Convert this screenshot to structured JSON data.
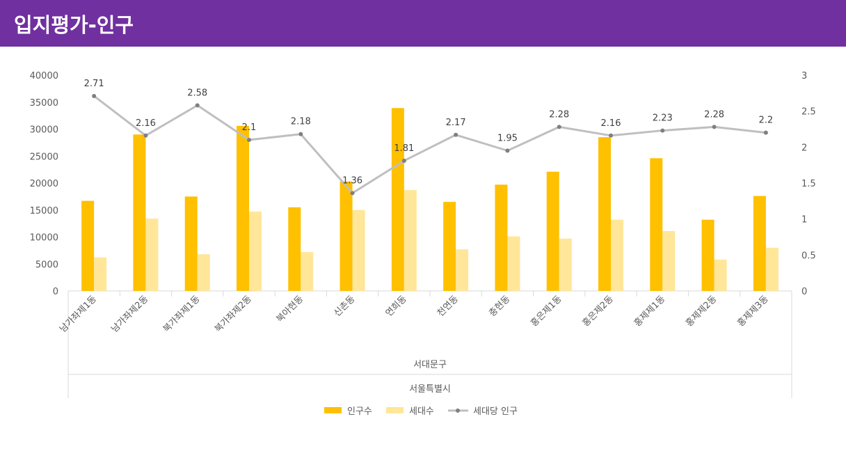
{
  "header": {
    "title": "입지평가-인구",
    "background": "#7030a0"
  },
  "chart_data": {
    "type": "bar",
    "categories": [
      "남가좌제1동",
      "남가좌제2동",
      "북가좌제1동",
      "북가좌제2동",
      "북아현동",
      "신촌동",
      "연희동",
      "천연동",
      "충현동",
      "홍은제1동",
      "홍은제2동",
      "홍제제1동",
      "홍제제2동",
      "홍제제3동"
    ],
    "group_labels": [
      "서대문구",
      "서울특별시"
    ],
    "series": [
      {
        "name": "인구수",
        "type": "bar",
        "axis": "left",
        "color": "#ffc000",
        "values": [
          16700,
          29000,
          17500,
          30600,
          15500,
          20300,
          33900,
          16500,
          19700,
          22100,
          28500,
          24600,
          13200,
          17600
        ]
      },
      {
        "name": "세대수",
        "type": "bar",
        "axis": "left",
        "color": "#ffe699",
        "values": [
          6200,
          13400,
          6800,
          14700,
          7200,
          15000,
          18700,
          7700,
          10100,
          9700,
          13200,
          11100,
          5800,
          8000
        ]
      },
      {
        "name": "세대당 인구",
        "type": "line",
        "axis": "right",
        "color": "#bfbfbf",
        "marker_color": "#7f7f7f",
        "values": [
          2.71,
          2.16,
          2.58,
          2.1,
          2.18,
          1.36,
          1.81,
          2.17,
          1.95,
          2.28,
          2.16,
          2.23,
          2.28,
          2.2
        ],
        "data_labels": [
          "2.71",
          "2.16",
          "2.58",
          "2.1",
          "2.18",
          "1.36",
          "1.81",
          "2.17",
          "1.95",
          "2.28",
          "2.16",
          "2.23",
          "2.28",
          "2.2"
        ]
      }
    ],
    "y_left": {
      "min": 0,
      "max": 40000,
      "ticks": [
        "0",
        "5000",
        "10000",
        "15000",
        "20000",
        "25000",
        "30000",
        "35000",
        "40000"
      ]
    },
    "y_right": {
      "min": 0,
      "max": 3,
      "ticks": [
        "0",
        "0.5",
        "1",
        "1.5",
        "2",
        "2.5",
        "3"
      ]
    },
    "grid": false,
    "legend_position": "bottom"
  }
}
